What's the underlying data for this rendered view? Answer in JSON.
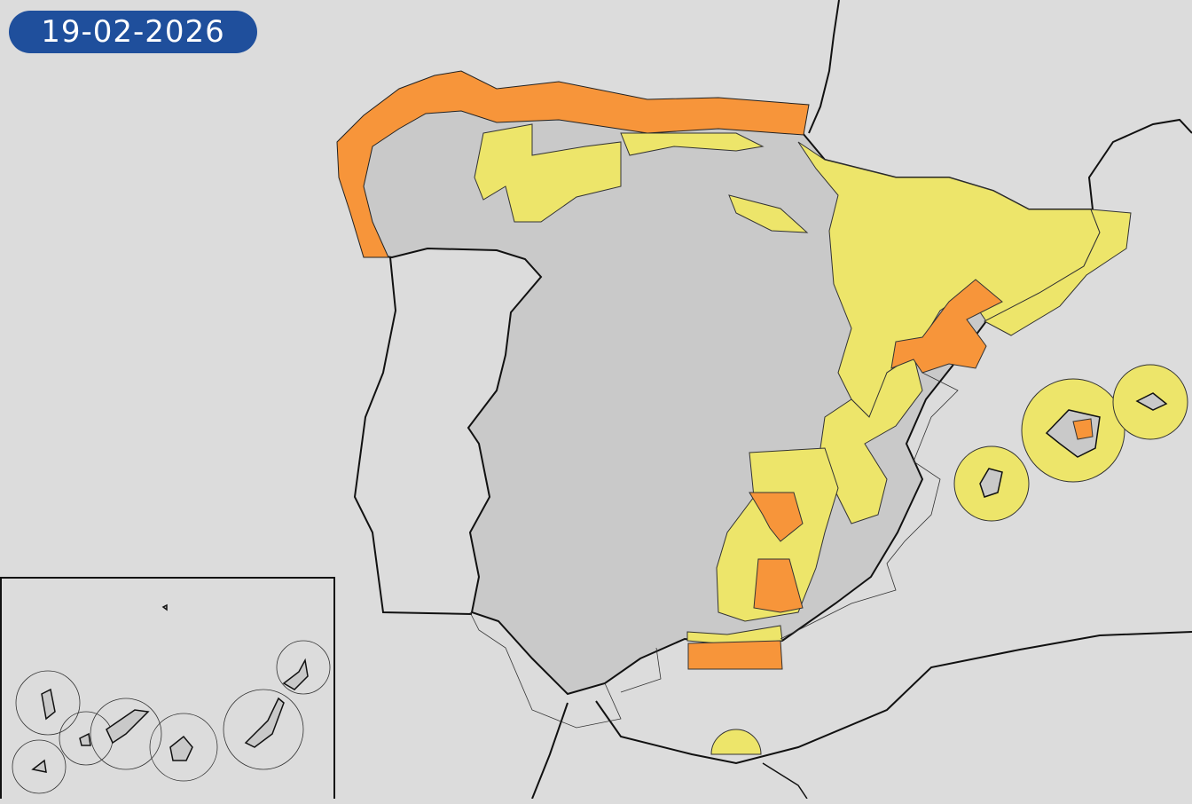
{
  "date": "19-02-2026",
  "legend_colors": {
    "badge": "#1f4f9c",
    "yellow_warning": "#ede56a",
    "orange_warning": "#f7953a",
    "land": "#c9c9c9",
    "sea": "#dcdcdc"
  }
}
